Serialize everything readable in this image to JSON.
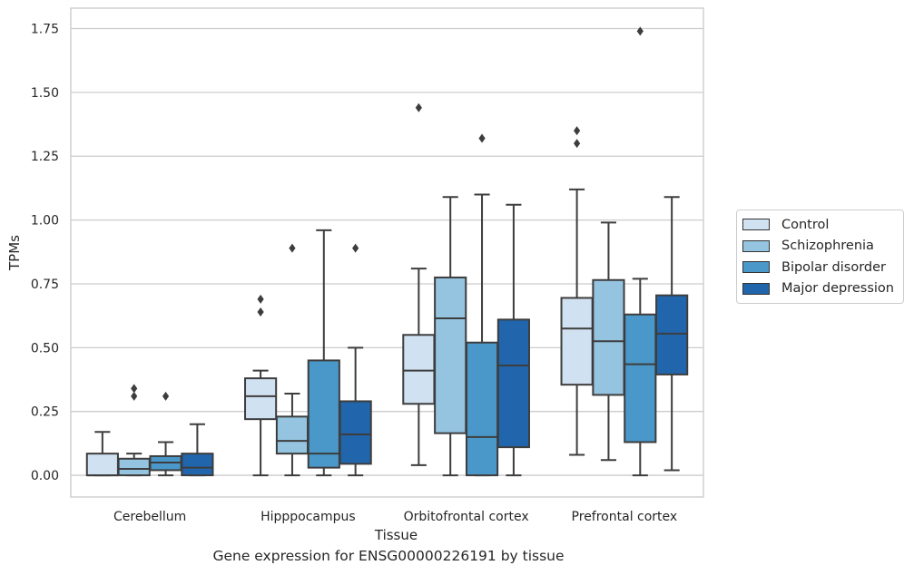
{
  "chart_data": {
    "type": "box",
    "title": "Gene expression for ENSG00000226191 by tissue",
    "xlabel": "Tissue",
    "ylabel": "TPMs",
    "ylim": [
      -0.085,
      1.83
    ],
    "yticks": [
      "0.00",
      "0.25",
      "0.50",
      "0.75",
      "1.00",
      "1.25",
      "1.50",
      "1.75"
    ],
    "grid": true,
    "legend_position": "right",
    "categories": [
      "Cerebellum",
      "Hipppocampus",
      "Orbitofrontal cortex",
      "Prefrontal cortex"
    ],
    "series": [
      {
        "name": "Control",
        "color": "#d0e1f2",
        "boxes": [
          {
            "whislo": 0.0,
            "q1": 0.0,
            "med": 0.0,
            "q3": 0.085,
            "whishi": 0.17,
            "fliers": []
          },
          {
            "whislo": 0.0,
            "q1": 0.22,
            "med": 0.31,
            "q3": 0.38,
            "whishi": 0.41,
            "fliers": [
              0.64,
              0.69
            ]
          },
          {
            "whislo": 0.04,
            "q1": 0.28,
            "med": 0.41,
            "q3": 0.55,
            "whishi": 0.81,
            "fliers": [
              1.44
            ]
          },
          {
            "whislo": 0.08,
            "q1": 0.355,
            "med": 0.575,
            "q3": 0.695,
            "whishi": 1.12,
            "fliers": [
              1.3,
              1.35
            ]
          }
        ]
      },
      {
        "name": "Schizophrenia",
        "color": "#94c4df",
        "boxes": [
          {
            "whislo": 0.0,
            "q1": 0.0,
            "med": 0.025,
            "q3": 0.065,
            "whishi": 0.085,
            "fliers": [
              0.31,
              0.34
            ]
          },
          {
            "whislo": 0.0,
            "q1": 0.085,
            "med": 0.135,
            "q3": 0.23,
            "whishi": 0.32,
            "fliers": [
              0.89
            ]
          },
          {
            "whislo": 0.0,
            "q1": 0.165,
            "med": 0.615,
            "q3": 0.775,
            "whishi": 1.09,
            "fliers": []
          },
          {
            "whislo": 0.06,
            "q1": 0.315,
            "med": 0.525,
            "q3": 0.765,
            "whishi": 0.99,
            "fliers": []
          }
        ]
      },
      {
        "name": "Bipolar disorder",
        "color": "#4a98c9",
        "boxes": [
          {
            "whislo": 0.0,
            "q1": 0.02,
            "med": 0.05,
            "q3": 0.075,
            "whishi": 0.13,
            "fliers": [
              0.31
            ]
          },
          {
            "whislo": 0.0,
            "q1": 0.03,
            "med": 0.085,
            "q3": 0.45,
            "whishi": 0.96,
            "fliers": []
          },
          {
            "whislo": 0.0,
            "q1": 0.0,
            "med": 0.15,
            "q3": 0.52,
            "whishi": 1.1,
            "fliers": [
              1.32
            ]
          },
          {
            "whislo": 0.0,
            "q1": 0.13,
            "med": 0.435,
            "q3": 0.63,
            "whishi": 0.77,
            "fliers": [
              1.74
            ]
          }
        ]
      },
      {
        "name": "Major depression",
        "color": "#2166ac",
        "boxes": [
          {
            "whislo": 0.0,
            "q1": 0.0,
            "med": 0.03,
            "q3": 0.085,
            "whishi": 0.2,
            "fliers": []
          },
          {
            "whislo": 0.0,
            "q1": 0.045,
            "med": 0.16,
            "q3": 0.29,
            "whishi": 0.5,
            "fliers": [
              0.89
            ]
          },
          {
            "whislo": 0.0,
            "q1": 0.11,
            "med": 0.43,
            "q3": 0.61,
            "whishi": 1.06,
            "fliers": []
          },
          {
            "whislo": 0.02,
            "q1": 0.395,
            "med": 0.555,
            "q3": 0.705,
            "whishi": 1.09,
            "fliers": []
          }
        ]
      }
    ]
  }
}
